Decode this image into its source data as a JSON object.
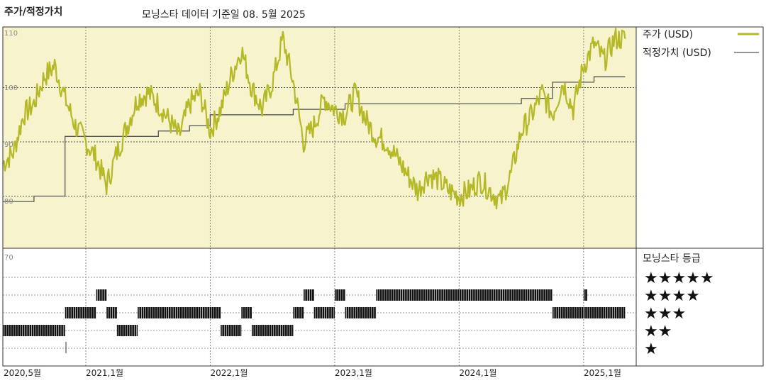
{
  "header": {
    "title": "주가/적정가치",
    "subtitle": "모닝스타 데이터 기준일 08. 5월 2025"
  },
  "colors": {
    "price": "#b5b827",
    "fair_value": "#555555",
    "upper_bg": "#f7f3cc",
    "rating_bar": "#111111",
    "grid": "#555555"
  },
  "chart_data": [
    {
      "type": "line",
      "xlabel": "",
      "ylabel": "",
      "x_range": [
        "2020-05-01",
        "2025-05-08"
      ],
      "ylim": [
        70,
        110
      ],
      "yticks": [
        110,
        100,
        90,
        80,
        70
      ],
      "xticks": [
        "2020,5월",
        "2021,1월",
        "2022,1월",
        "2023,1월",
        "2024,1월",
        "2025,1월"
      ],
      "legend_position": "right",
      "grid": true,
      "series": [
        {
          "name": "주가 (USD)",
          "points": [
            [
              "2020-05",
              86
            ],
            [
              "2020-06",
              88
            ],
            [
              "2020-07",
              95
            ],
            [
              "2020-08",
              97
            ],
            [
              "2020-09",
              102
            ],
            [
              "2020-10",
              104
            ],
            [
              "2020-11",
              98
            ],
            [
              "2020-12",
              93
            ],
            [
              "2021-01",
              90
            ],
            [
              "2021-02",
              87
            ],
            [
              "2021-03",
              82
            ],
            [
              "2021-04",
              88
            ],
            [
              "2021-05",
              93
            ],
            [
              "2021-06",
              98
            ],
            [
              "2021-07",
              99
            ],
            [
              "2021-08",
              97
            ],
            [
              "2021-09",
              94
            ],
            [
              "2021-10",
              91
            ],
            [
              "2021-11",
              97
            ],
            [
              "2021-12",
              99
            ],
            [
              "2022-01",
              92
            ],
            [
              "2022-02",
              96
            ],
            [
              "2022-03",
              102
            ],
            [
              "2022-04",
              107
            ],
            [
              "2022-05",
              100
            ],
            [
              "2022-06",
              96
            ],
            [
              "2022-07",
              101
            ],
            [
              "2022-08",
              109
            ],
            [
              "2022-09",
              101
            ],
            [
              "2022-10",
              90
            ],
            [
              "2022-11",
              93
            ],
            [
              "2022-12",
              98
            ],
            [
              "2023-01",
              96
            ],
            [
              "2023-02",
              95
            ],
            [
              "2023-03",
              99
            ],
            [
              "2023-04",
              94
            ],
            [
              "2023-05",
              91
            ],
            [
              "2023-06",
              90
            ],
            [
              "2023-07",
              87
            ],
            [
              "2023-08",
              84
            ],
            [
              "2023-09",
              81
            ],
            [
              "2023-10",
              84
            ],
            [
              "2023-11",
              83
            ],
            [
              "2023-12",
              81
            ],
            [
              "2024-01",
              80
            ],
            [
              "2024-02",
              81
            ],
            [
              "2024-03",
              83
            ],
            [
              "2024-04",
              81
            ],
            [
              "2024-05",
              79
            ],
            [
              "2024-06",
              84
            ],
            [
              "2024-07",
              92
            ],
            [
              "2024-08",
              95
            ],
            [
              "2024-09",
              99
            ],
            [
              "2024-10",
              95
            ],
            [
              "2024-11",
              101
            ],
            [
              "2024-12",
              96
            ],
            [
              "2025-01",
              104
            ],
            [
              "2025-02",
              108
            ],
            [
              "2025-03",
              105
            ],
            [
              "2025-04",
              109
            ],
            [
              "2025-05",
              109
            ]
          ]
        },
        {
          "name": "적정가치 (USD)",
          "step": true,
          "points": [
            [
              "2020-05",
              79
            ],
            [
              "2020-08",
              79
            ],
            [
              "2020-08",
              80
            ],
            [
              "2020-11",
              80
            ],
            [
              "2020-11",
              91
            ],
            [
              "2021-08",
              91
            ],
            [
              "2021-08",
              92
            ],
            [
              "2021-11",
              92
            ],
            [
              "2021-11",
              93
            ],
            [
              "2022-01",
              93
            ],
            [
              "2022-01",
              95
            ],
            [
              "2022-09",
              95
            ],
            [
              "2022-09",
              96
            ],
            [
              "2023-02",
              96
            ],
            [
              "2023-02",
              97
            ],
            [
              "2024-07",
              97
            ],
            [
              "2024-07",
              98
            ],
            [
              "2024-10",
              98
            ],
            [
              "2024-10",
              101
            ],
            [
              "2025-02",
              101
            ],
            [
              "2025-02",
              102
            ],
            [
              "2025-05",
              102
            ]
          ]
        }
      ]
    },
    {
      "type": "bar",
      "title": "모닝스타 등급",
      "levels": [
        "★★★★★",
        "★★★★",
        "★★★",
        "★★",
        "★"
      ],
      "periods": [
        {
          "start": "2020-05",
          "end": "2020-11",
          "rating": 2
        },
        {
          "start": "2020-11",
          "end": "2021-02",
          "rating": 3
        },
        {
          "start": "2021-02",
          "end": "2021-03",
          "rating": 4
        },
        {
          "start": "2021-03",
          "end": "2021-04",
          "rating": 3
        },
        {
          "start": "2021-04",
          "end": "2021-06",
          "rating": 2
        },
        {
          "start": "2021-06",
          "end": "2022-02",
          "rating": 3
        },
        {
          "start": "2022-02",
          "end": "2022-04",
          "rating": 2
        },
        {
          "start": "2022-04",
          "end": "2022-05",
          "rating": 3
        },
        {
          "start": "2022-05",
          "end": "2022-09",
          "rating": 2
        },
        {
          "start": "2022-09",
          "end": "2022-10",
          "rating": 3
        },
        {
          "start": "2022-10",
          "end": "2022-11",
          "rating": 4
        },
        {
          "start": "2022-11",
          "end": "2023-01",
          "rating": 3
        },
        {
          "start": "2023-01",
          "end": "2023-02",
          "rating": 4
        },
        {
          "start": "2023-02",
          "end": "2023-05",
          "rating": 3
        },
        {
          "start": "2023-05",
          "end": "2024-10",
          "rating": 4
        },
        {
          "start": "2024-10",
          "end": "2025-01",
          "rating": 3
        },
        {
          "start": "2025-01",
          "end": "2025-01",
          "rating": 4
        },
        {
          "start": "2025-01",
          "end": "2025-05",
          "rating": 3
        }
      ]
    }
  ]
}
